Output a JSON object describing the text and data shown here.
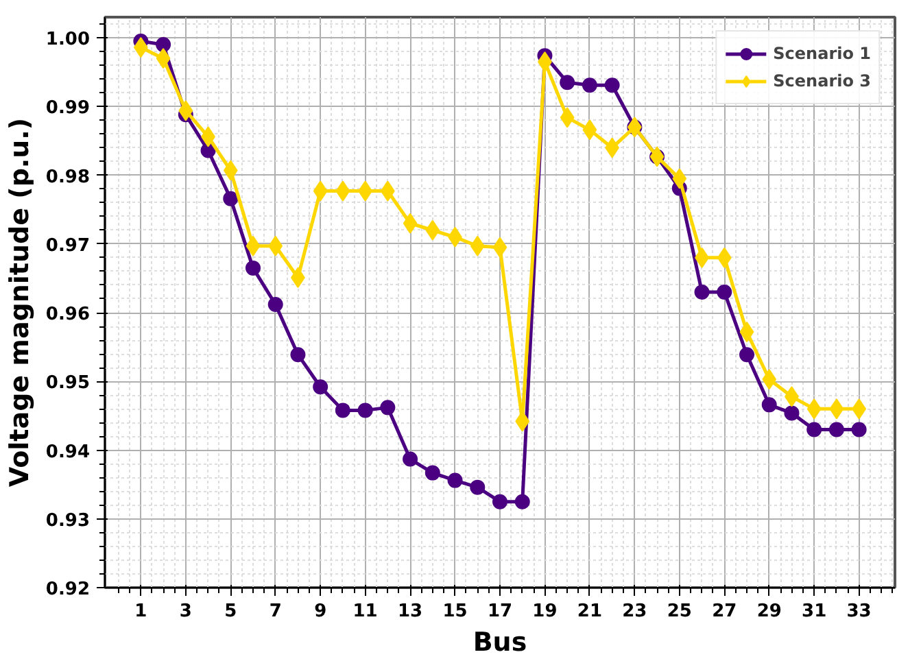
{
  "chart_data": {
    "type": "line",
    "xlabel": "Bus",
    "ylabel": "Voltage magnitude (p.u.)",
    "x": [
      1,
      2,
      3,
      4,
      5,
      6,
      7,
      8,
      9,
      10,
      11,
      12,
      13,
      14,
      15,
      16,
      17,
      18,
      19,
      20,
      21,
      22,
      23,
      24,
      25,
      26,
      27,
      28,
      29,
      30,
      31,
      32,
      33
    ],
    "series": [
      {
        "name": "Scenario 1",
        "color": "#4b0082",
        "marker": "circle",
        "values": [
          0.9995,
          0.999,
          0.9888,
          0.9836,
          0.9766,
          0.9665,
          0.9612,
          0.9539,
          0.9492,
          0.9458,
          0.9458,
          0.9462,
          0.9387,
          0.9367,
          0.9356,
          0.9346,
          0.9325,
          0.9325,
          0.9974,
          0.9935,
          0.9931,
          0.9931,
          0.987,
          0.9827,
          0.9781,
          0.963,
          0.963,
          0.9539,
          0.9466,
          0.9454,
          0.943,
          0.943,
          0.943
        ]
      },
      {
        "name": "Scenario 3",
        "color": "#ffd700",
        "marker": "diamond",
        "values": [
          0.9986,
          0.997,
          0.9894,
          0.9856,
          0.9807,
          0.9697,
          0.9697,
          0.9651,
          0.9777,
          0.9777,
          0.9777,
          0.9777,
          0.973,
          0.972,
          0.971,
          0.9697,
          0.9695,
          0.9442,
          0.9965,
          0.9884,
          0.9866,
          0.984,
          0.987,
          0.9827,
          0.9795,
          0.968,
          0.968,
          0.9572,
          0.9503,
          0.9478,
          0.946,
          0.946,
          0.946
        ]
      }
    ],
    "xlim": [
      -0.6,
      34.6
    ],
    "xticks": [
      1,
      3,
      5,
      7,
      9,
      11,
      13,
      15,
      17,
      19,
      21,
      23,
      25,
      27,
      29,
      31,
      33
    ],
    "ylim": [
      0.92,
      1.003
    ],
    "yticks": [
      {
        "value": 0.92,
        "label": "0.92"
      },
      {
        "value": 0.93,
        "label": "0.93"
      },
      {
        "value": 0.94,
        "label": "0.94"
      },
      {
        "value": 0.95,
        "label": "0.95"
      },
      {
        "value": 0.96,
        "label": "0.96"
      },
      {
        "value": 0.97,
        "label": "0.97"
      },
      {
        "value": 0.98,
        "label": "0.98"
      },
      {
        "value": 0.99,
        "label": "0.99"
      },
      {
        "value": 1.0,
        "label": "1.00"
      }
    ],
    "grid": true,
    "legend": "top right",
    "line_style": "solid"
  }
}
